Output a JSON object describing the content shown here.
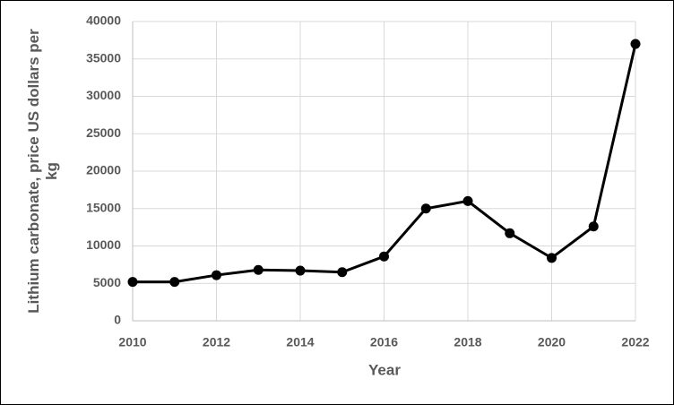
{
  "chart_data": {
    "type": "line",
    "x_label": "Year",
    "y_label": "Lithium carbonate, price US dollars per kg",
    "x": [
      2010,
      2011,
      2012,
      2013,
      2014,
      2015,
      2016,
      2017,
      2018,
      2019,
      2020,
      2021,
      2022
    ],
    "series": [
      {
        "color": "#000000",
        "values": [
          5200,
          5200,
          6100,
          6800,
          6700,
          6500,
          8600,
          15000,
          16000,
          11700,
          8400,
          12600,
          37000
        ]
      }
    ],
    "xlim": [
      2010,
      2022
    ],
    "xticks": [
      2010,
      2012,
      2014,
      2016,
      2018,
      2020,
      2022
    ],
    "ylim": [
      0,
      40000
    ],
    "yticks": [
      0,
      5000,
      10000,
      15000,
      20000,
      25000,
      30000,
      35000,
      40000
    ],
    "grid": true
  }
}
